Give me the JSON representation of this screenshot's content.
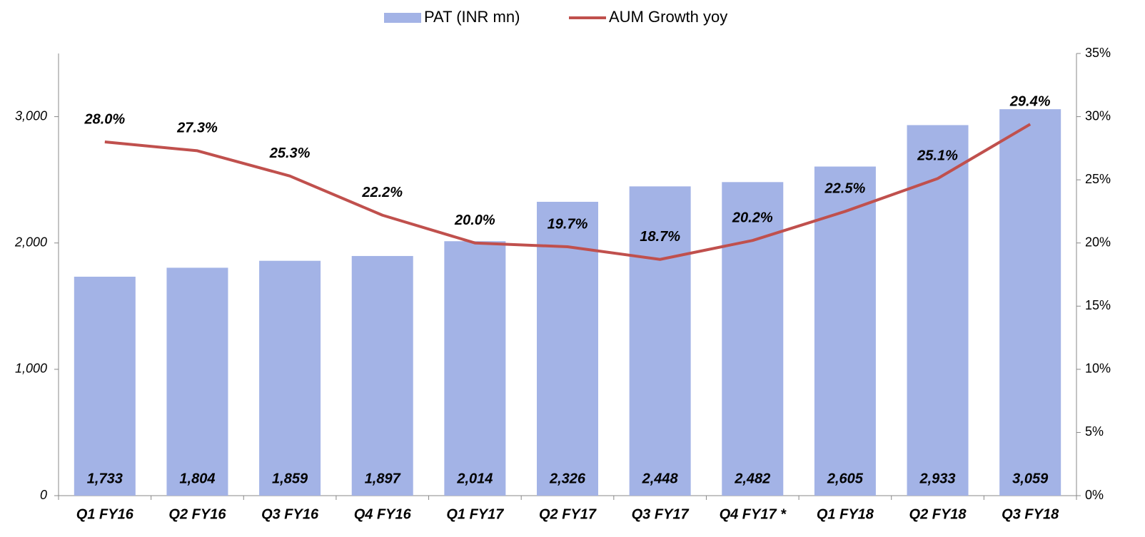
{
  "chart_data": {
    "type": "bar",
    "categories": [
      "Q1 FY16",
      "Q2 FY16",
      "Q3 FY16",
      "Q4 FY16",
      "Q1 FY17",
      "Q2 FY17",
      "Q3 FY17",
      "Q4 FY17 *",
      "Q1 FY18",
      "Q2 FY18",
      "Q3 FY18"
    ],
    "series": [
      {
        "name": "PAT (INR mn)",
        "color": "#a3b3e6",
        "type": "bar",
        "values": [
          1733,
          1804,
          1859,
          1897,
          2014,
          2326,
          2448,
          2482,
          2605,
          2933,
          3059
        ],
        "value_labels": [
          "1,733",
          "1,804",
          "1,859",
          "1,897",
          "2,014",
          "2,326",
          "2,448",
          "2,482",
          "2,605",
          "2,933",
          "3,059"
        ]
      },
      {
        "name": "AUM Growth yoy",
        "color": "#c0504d",
        "type": "line",
        "axis": "y2",
        "values": [
          28.0,
          27.3,
          25.3,
          22.2,
          20.0,
          19.7,
          18.7,
          20.2,
          22.5,
          25.1,
          29.4
        ],
        "value_labels": [
          "28.0%",
          "27.3%",
          "25.3%",
          "22.2%",
          "20.0%",
          "19.7%",
          "18.7%",
          "20.2%",
          "22.5%",
          "25.1%",
          "29.4%"
        ]
      }
    ],
    "ylim": [
      0,
      3500
    ],
    "yticks": [
      0,
      {
        "value": 1000,
        "label": "1,000"
      },
      {
        "value": 2000,
        "label": "2,000"
      },
      {
        "value": 3000,
        "label": "3,000"
      }
    ],
    "y2lim": [
      0,
      35
    ],
    "y2ticks": [
      {
        "value": 0,
        "label": "0%"
      },
      {
        "value": 5,
        "label": "5%"
      },
      {
        "value": 10,
        "label": "10%"
      },
      {
        "value": 15,
        "label": "15%"
      },
      {
        "value": 20,
        "label": "20%"
      },
      {
        "value": 25,
        "label": "25%"
      },
      {
        "value": 30,
        "label": "30%"
      },
      {
        "value": 35,
        "label": "35%"
      }
    ],
    "legend": "top"
  }
}
